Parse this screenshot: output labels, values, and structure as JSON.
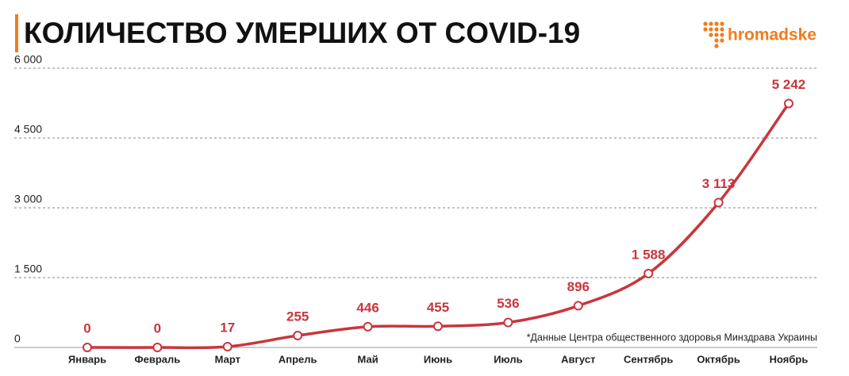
{
  "chart_data": {
    "type": "line",
    "title": "КОЛИЧЕСТВО УМЕРШИХ ОТ COVID-19",
    "logo": "hromadske",
    "note": "*Данные Центра общественного здоровья Минздрава Украины",
    "categories": [
      "Январь",
      "Февраль",
      "Март",
      "Апрель",
      "Май",
      "Июнь",
      "Июль",
      "Август",
      "Сентябрь",
      "Октябрь",
      "Ноябрь"
    ],
    "values": [
      0,
      0,
      17,
      255,
      446,
      455,
      536,
      896,
      1588,
      3113,
      5242
    ],
    "value_labels": [
      "0",
      "0",
      "17",
      "255",
      "446",
      "455",
      "536",
      "896",
      "1 588",
      "3 113",
      "5 242"
    ],
    "color": "#c8363d",
    "ylim": [
      0,
      6000
    ],
    "yticks": [
      0,
      {
        "value": 1500,
        "label": "1 500"
      },
      {
        "value": 3000,
        "label": "3 000"
      },
      {
        "value": 4500,
        "label": "4 500"
      },
      {
        "value": 6000,
        "label": "6 000"
      }
    ],
    "grid": true
  }
}
